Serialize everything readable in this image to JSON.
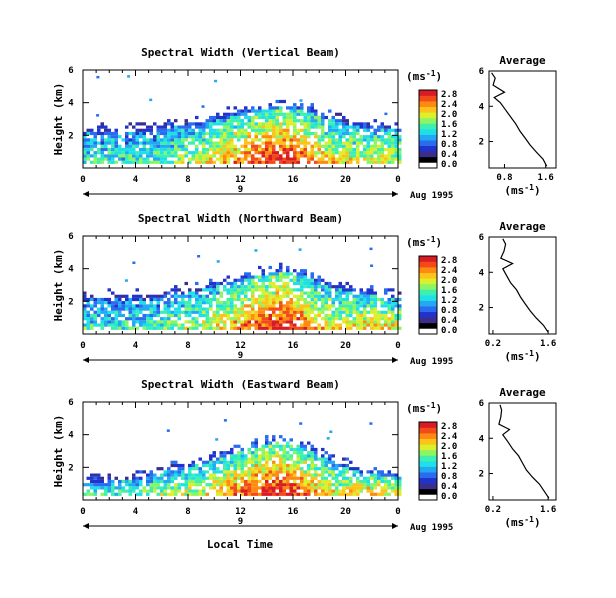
{
  "colorbar": {
    "unit_label": "(ms",
    "unit_exp": "-1",
    "unit_close": ")",
    "colors": [
      "#ffffff",
      "#000000",
      "#3a2e8c",
      "#2233cc",
      "#2a6cf0",
      "#23a8f2",
      "#1fe0e8",
      "#3ef0b0",
      "#8cf563",
      "#dcef2d",
      "#ffc21a",
      "#ff8a12",
      "#f24a18",
      "#d91c24"
    ]
  },
  "date_label": "Aug 1995",
  "day_label": "9",
  "bottom_xlabel": "Local Time",
  "avg_xlabel_main": "(ms",
  "avg_xlabel_exp": "-1",
  "avg_xlabel_close": ")",
  "chart_data": [
    {
      "type": "heatmap",
      "title": "Spectral Width (Vertical Beam)",
      "ylabel": "Height (km)",
      "x_range": [
        0,
        24
      ],
      "x_ticks": [
        "0",
        "4",
        "8",
        "12",
        "16",
        "20",
        "0"
      ],
      "y_range": [
        0,
        6
      ],
      "y_ticks": [
        "2",
        "4",
        "6"
      ],
      "cbar_ticks": [
        "0.0",
        "0.4",
        "0.8",
        "1.2",
        "1.6",
        "2.0",
        "2.4",
        "2.8"
      ],
      "cbar_range": [
        0,
        3.0
      ],
      "profile_hours": [
        0,
        1.5,
        3,
        4.5,
        6,
        7.5,
        9,
        10.5,
        12,
        13.5,
        15,
        16.5,
        18,
        19.5,
        21,
        22.5,
        24
      ],
      "profile_top_km": [
        2.0,
        2.1,
        2.0,
        2.2,
        2.3,
        2.5,
        2.6,
        2.9,
        3.2,
        3.4,
        3.6,
        3.5,
        3.0,
        2.7,
        2.4,
        2.3,
        2.2
      ],
      "profile_peak_width": [
        1.2,
        1.3,
        1.2,
        1.3,
        1.4,
        1.6,
        1.8,
        2.1,
        2.4,
        2.7,
        2.8,
        2.6,
        2.2,
        1.9,
        1.8,
        1.9,
        1.7
      ],
      "average_panel": {
        "title": "Average",
        "x_ticks": [
          "0.8",
          "1.6"
        ],
        "x_range": [
          0.5,
          1.8
        ],
        "y_ticks": [
          "2",
          "4",
          "6"
        ],
        "y_range": [
          0.5,
          6
        ],
        "heights": [
          0.6,
          1.0,
          1.4,
          1.8,
          2.2,
          2.6,
          3.0,
          3.4,
          3.8,
          4.2,
          4.5,
          4.8,
          5.2,
          5.6,
          5.9
        ],
        "widths": [
          1.62,
          1.55,
          1.42,
          1.3,
          1.2,
          1.1,
          1.02,
          0.92,
          0.82,
          0.72,
          0.6,
          0.8,
          0.58,
          0.62,
          0.55
        ]
      }
    },
    {
      "type": "heatmap",
      "title": "Spectral Width (Northward Beam)",
      "ylabel": "Height (km)",
      "x_range": [
        0,
        24
      ],
      "x_ticks": [
        "0",
        "4",
        "8",
        "12",
        "16",
        "20",
        "0"
      ],
      "y_range": [
        0,
        6
      ],
      "y_ticks": [
        "2",
        "4",
        "6"
      ],
      "cbar_ticks": [
        "0.0",
        "0.4",
        "0.8",
        "1.2",
        "1.6",
        "2.0",
        "2.4",
        "2.8"
      ],
      "cbar_range": [
        0,
        3.0
      ],
      "profile_hours": [
        0,
        1.5,
        3,
        4.5,
        6,
        7.5,
        9,
        10.5,
        12,
        13.5,
        15,
        16.5,
        18,
        19.5,
        21,
        22.5,
        24
      ],
      "profile_top_km": [
        2.1,
        2.0,
        2.1,
        2.0,
        2.2,
        2.4,
        2.6,
        2.9,
        3.2,
        3.5,
        3.7,
        3.5,
        3.0,
        2.6,
        2.3,
        2.2,
        2.1
      ],
      "profile_peak_width": [
        1.3,
        1.2,
        1.3,
        1.2,
        1.4,
        1.5,
        1.7,
        2.0,
        2.3,
        2.6,
        2.8,
        2.5,
        2.1,
        1.9,
        2.0,
        2.1,
        1.8
      ],
      "average_panel": {
        "title": "Average",
        "x_ticks": [
          "0.2",
          "1.6"
        ],
        "x_range": [
          0.1,
          1.8
        ],
        "y_ticks": [
          "2",
          "4",
          "6"
        ],
        "y_range": [
          0.5,
          6
        ],
        "heights": [
          0.6,
          1.0,
          1.4,
          1.8,
          2.2,
          2.6,
          3.0,
          3.4,
          3.8,
          4.2,
          4.5,
          4.8,
          5.2,
          5.6,
          5.9
        ],
        "widths": [
          1.6,
          1.48,
          1.3,
          1.15,
          1.02,
          0.9,
          0.8,
          0.65,
          0.55,
          0.45,
          0.7,
          0.4,
          0.48,
          0.52,
          0.45
        ]
      }
    },
    {
      "type": "heatmap",
      "title": "Spectral Width (Eastward Beam)",
      "ylabel": "Height (km)",
      "x_range": [
        0,
        24
      ],
      "x_ticks": [
        "0",
        "4",
        "8",
        "12",
        "16",
        "20",
        "0"
      ],
      "y_range": [
        0,
        6
      ],
      "y_ticks": [
        "2",
        "4",
        "6"
      ],
      "cbar_ticks": [
        "0.0",
        "0.4",
        "0.8",
        "1.2",
        "1.6",
        "2.0",
        "2.4",
        "2.8"
      ],
      "cbar_range": [
        0,
        3.0
      ],
      "profile_hours": [
        0,
        1.5,
        3,
        4.5,
        6,
        7.5,
        9,
        10.5,
        12,
        13.5,
        15,
        16.5,
        18,
        19.5,
        21,
        22.5,
        24
      ],
      "profile_top_km": [
        1.0,
        1.0,
        1.1,
        1.3,
        1.6,
        1.9,
        2.1,
        2.5,
        2.9,
        3.2,
        3.5,
        3.2,
        2.6,
        2.0,
        1.6,
        1.4,
        1.3
      ],
      "profile_peak_width": [
        1.4,
        1.4,
        1.4,
        1.5,
        1.6,
        1.7,
        1.9,
        2.2,
        2.5,
        2.7,
        2.8,
        2.5,
        2.1,
        1.9,
        2.1,
        2.2,
        1.9
      ],
      "average_panel": {
        "title": "Average",
        "x_ticks": [
          "0.2",
          "1.6"
        ],
        "x_range": [
          0.1,
          1.8
        ],
        "y_ticks": [
          "2",
          "4",
          "6"
        ],
        "y_range": [
          0.5,
          6
        ],
        "heights": [
          0.6,
          1.0,
          1.4,
          1.8,
          2.2,
          2.6,
          3.0,
          3.4,
          3.8,
          4.2,
          4.5,
          4.8,
          5.2,
          5.6,
          5.9
        ],
        "widths": [
          1.62,
          1.5,
          1.38,
          1.2,
          1.05,
          0.95,
          0.85,
          0.7,
          0.58,
          0.45,
          0.62,
          0.35,
          0.4,
          0.42,
          0.38
        ]
      }
    }
  ]
}
